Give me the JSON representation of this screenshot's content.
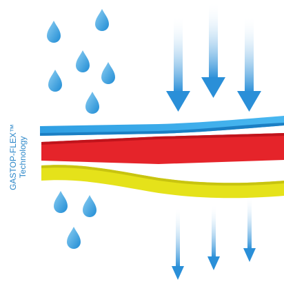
{
  "brand": {
    "name": "GASTOP-FLEX™",
    "subtitle": "Technology"
  }
}
